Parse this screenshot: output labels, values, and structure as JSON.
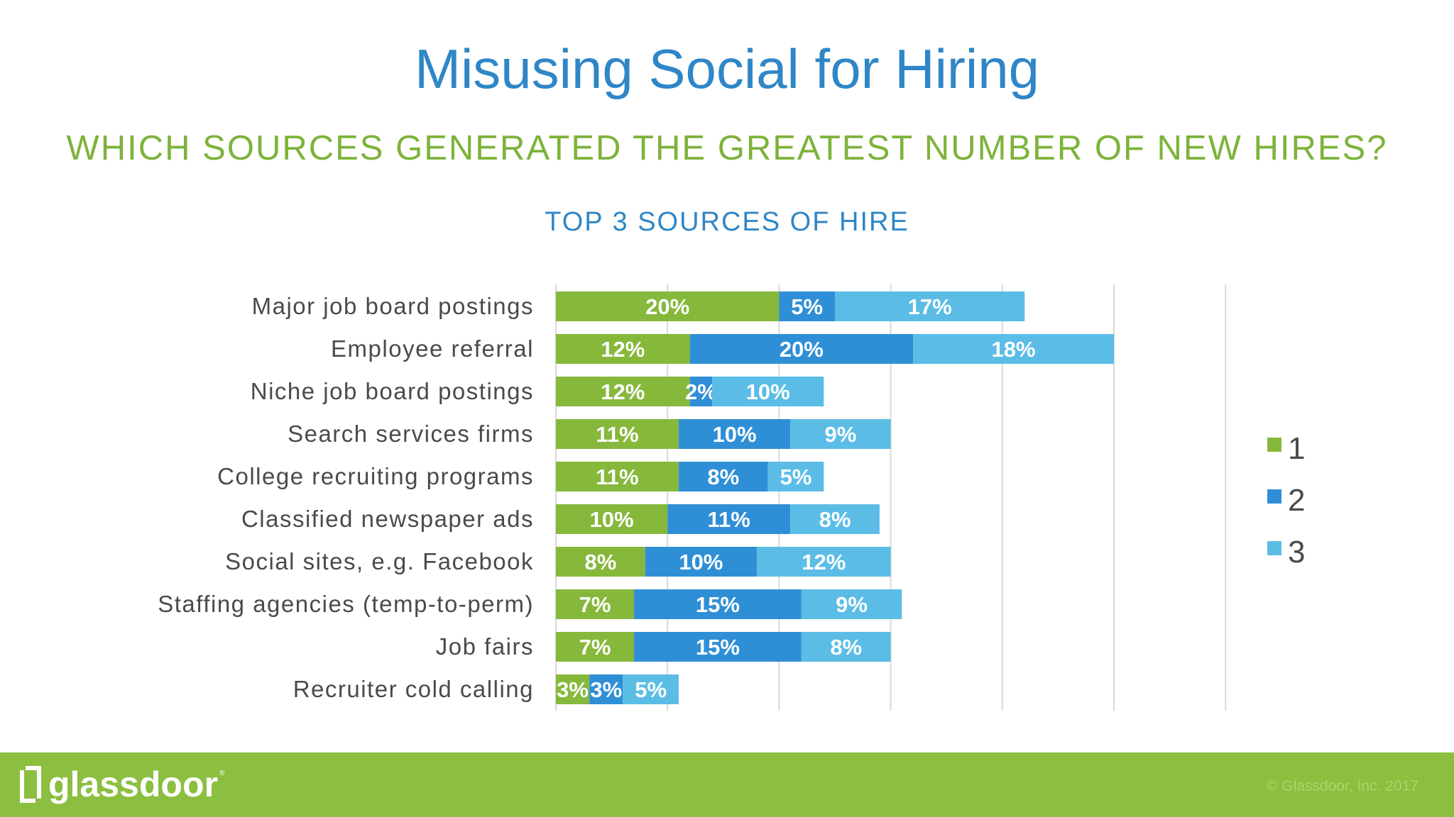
{
  "title": "Misusing Social for Hiring",
  "subtitle": "WHICH SOURCES GENERATED THE GREATEST NUMBER OF NEW HIRES?",
  "footer": {
    "logo_text": "glassdoor",
    "logo_tm": "®",
    "copyright": "© Glassdoor, Inc. 2017"
  },
  "colors": {
    "series1": "#86b83c",
    "series2": "#2f8fd6",
    "series3": "#5bbde6",
    "footer": "#8cbf3f"
  },
  "chart_data": {
    "type": "bar",
    "orientation": "horizontal",
    "stacked": true,
    "title": "TOP 3 SOURCES OF HIRE",
    "categories": [
      "Major job board postings",
      "Employee referral",
      "Niche job board postings",
      "Search services firms",
      "College recruiting programs",
      "Classified newspaper ads",
      "Social sites, e.g. Facebook",
      "Staffing agencies (temp-to-perm)",
      "Job fairs",
      "Recruiter cold calling"
    ],
    "series": [
      {
        "name": "1",
        "values": [
          20,
          12,
          12,
          11,
          11,
          10,
          8,
          7,
          7,
          3
        ],
        "labels": [
          "20%",
          "12%",
          "12%",
          "11%",
          "11%",
          "10%",
          "8%",
          "7%",
          "7%",
          "3%"
        ]
      },
      {
        "name": "2",
        "values": [
          5,
          20,
          2,
          10,
          8,
          11,
          10,
          15,
          15,
          3
        ],
        "labels": [
          "5%",
          "20%",
          "2%",
          "10%",
          "8%",
          "11%",
          "10%",
          "15%",
          "15%",
          "3%"
        ]
      },
      {
        "name": "3",
        "values": [
          17,
          18,
          10,
          9,
          5,
          8,
          12,
          9,
          8,
          5
        ],
        "labels": [
          "17%",
          "18%",
          "10%",
          "9%",
          "5%",
          "8%",
          "12%",
          "9%",
          "8%",
          "5%"
        ]
      }
    ],
    "xlim": [
      0,
      60
    ],
    "grid": true,
    "legend": "right"
  }
}
